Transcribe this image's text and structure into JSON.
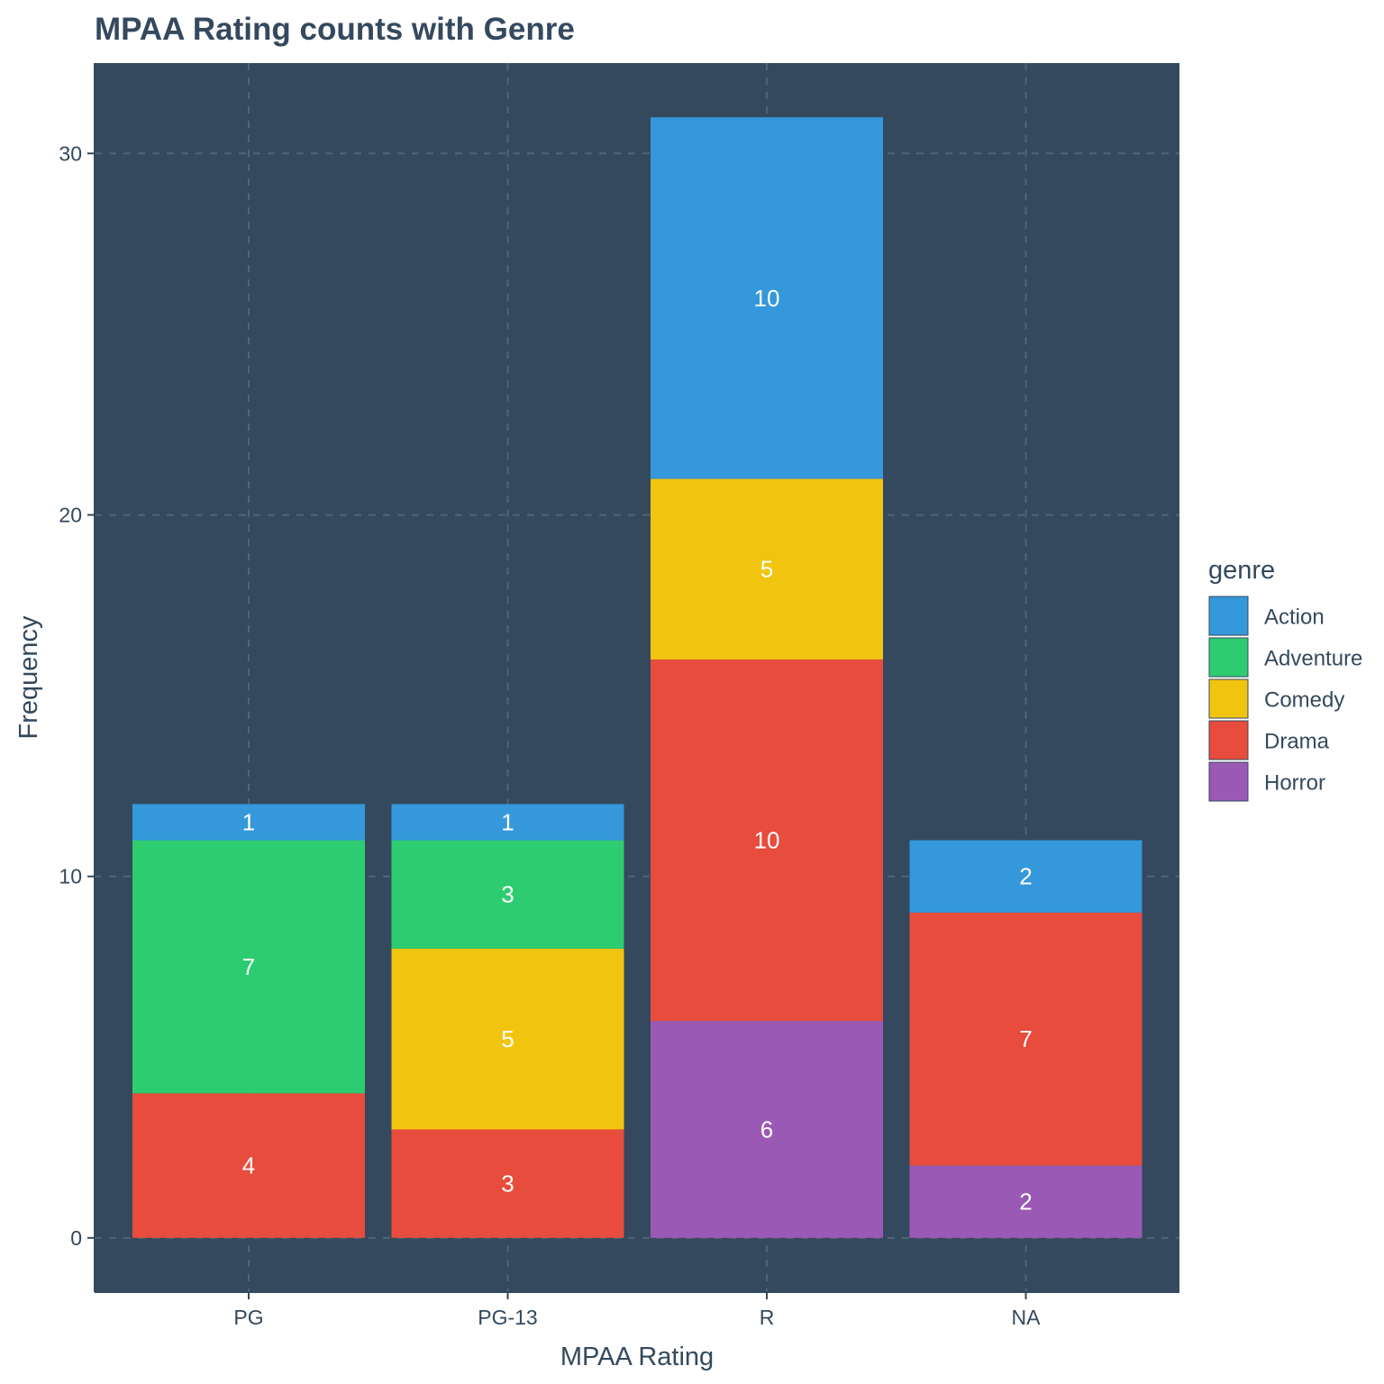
{
  "colors": {
    "panel": "#34495E",
    "grid": "#4F6478",
    "text": "#34495E",
    "label": "#FFFFFF",
    "Action": "#3498DB",
    "Adventure": "#2ECC71",
    "Comedy": "#F1C40F",
    "Drama": "#E74C3C",
    "Horror": "#9B59B6"
  },
  "chart_data": {
    "type": "bar",
    "stacked": true,
    "title": "MPAA Rating counts with Genre",
    "xlabel": "MPAA Rating",
    "ylabel": "Frequency",
    "categories": [
      "PG",
      "PG-13",
      "R",
      "NA"
    ],
    "y_ticks": [
      0,
      10,
      20,
      30
    ],
    "ylim": [
      -1.5,
      32.5
    ],
    "grid": true,
    "legend": {
      "title": "genre",
      "position": "right",
      "entries": [
        "Action",
        "Adventure",
        "Comedy",
        "Drama",
        "Horror"
      ]
    },
    "series": [
      {
        "name": "Horror",
        "values": [
          0,
          0,
          6,
          2
        ]
      },
      {
        "name": "Drama",
        "values": [
          4,
          3,
          10,
          7
        ]
      },
      {
        "name": "Comedy",
        "values": [
          0,
          5,
          5,
          0
        ]
      },
      {
        "name": "Adventure",
        "values": [
          7,
          3,
          0,
          0
        ]
      },
      {
        "name": "Action",
        "values": [
          1,
          1,
          10,
          2
        ]
      }
    ]
  }
}
